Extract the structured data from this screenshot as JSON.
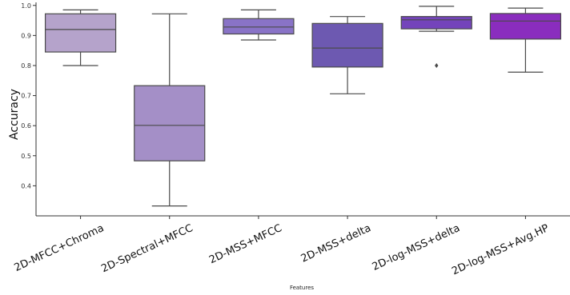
{
  "chart_data": {
    "type": "box",
    "title": "",
    "xlabel": "Features",
    "ylabel": "Accuracy",
    "ylim": [
      0.3,
      1.01
    ],
    "yticks": [
      0.4,
      0.5,
      0.6,
      0.7,
      0.8,
      0.9,
      1.0
    ],
    "ytick_labels": [
      "0.4",
      "0.5",
      "0.6",
      "0.7",
      "0.8",
      "0.9",
      "1.0"
    ],
    "grid": false,
    "categories": [
      "2D-MFCC+Chroma",
      "2D-Spectral+MFCC",
      "2D-MSS+MFCC",
      "2D-MSS+delta",
      "2D-log-MSS+delta",
      "2D-log-MSS+Avg.HP"
    ],
    "boxes": [
      {
        "whisker_low": 0.8,
        "q1": 0.845,
        "median": 0.92,
        "q3": 0.972,
        "whisker_high": 0.985,
        "outliers": [],
        "color": "#b5a3cb"
      },
      {
        "whisker_low": 0.333,
        "q1": 0.483,
        "median": 0.601,
        "q3": 0.733,
        "whisker_high": 0.972,
        "outliers": [],
        "color": "#a48fc7"
      },
      {
        "whisker_low": 0.885,
        "q1": 0.905,
        "median": 0.928,
        "q3": 0.956,
        "whisker_high": 0.985,
        "outliers": [],
        "color": "#8973c7"
      },
      {
        "whisker_low": 0.706,
        "q1": 0.795,
        "median": 0.858,
        "q3": 0.94,
        "whisker_high": 0.963,
        "outliers": [],
        "color": "#6d59b1"
      },
      {
        "whisker_low": 0.914,
        "q1": 0.922,
        "median": 0.952,
        "q3": 0.963,
        "whisker_high": 0.997,
        "outliers": [
          0.8
        ],
        "color": "#7444bb"
      },
      {
        "whisker_low": 0.778,
        "q1": 0.888,
        "median": 0.948,
        "q3": 0.973,
        "whisker_high": 0.991,
        "outliers": [],
        "color": "#8a2dbe"
      }
    ],
    "line_color": "#4a4a4a",
    "axis_color": "#333333"
  }
}
